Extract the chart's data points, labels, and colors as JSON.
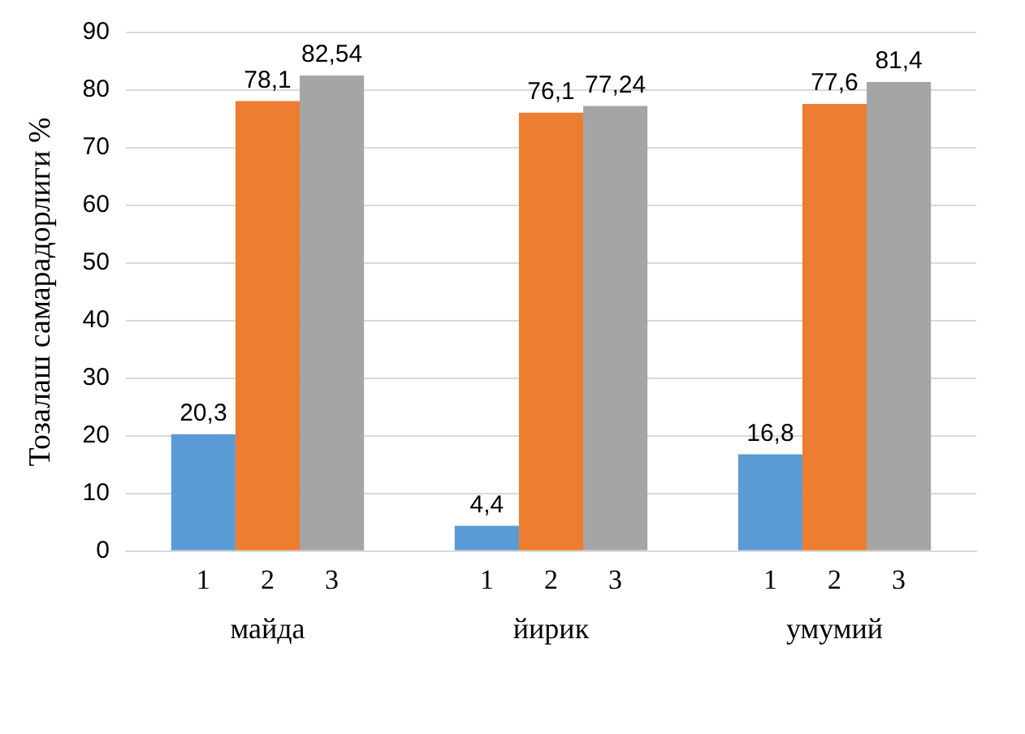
{
  "chart_data": {
    "type": "bar",
    "ylabel": "Тозалаш самарадорлиги %",
    "categories": [
      "майда",
      "йирик",
      "умумий"
    ],
    "series": [
      {
        "name": "1",
        "color": "#5b9bd5",
        "values": [
          20.3,
          4.4,
          16.8
        ],
        "value_labels": [
          "20,3",
          "4,4",
          "16,8"
        ]
      },
      {
        "name": "2",
        "color": "#ed7d31",
        "values": [
          78.1,
          76.1,
          77.6
        ],
        "value_labels": [
          "78,1",
          "76,1",
          "77,6"
        ]
      },
      {
        "name": "3",
        "color": "#a5a5a5",
        "values": [
          82.54,
          77.24,
          81.4
        ],
        "value_labels": [
          "82,54",
          "77,24",
          "81,4"
        ]
      }
    ],
    "ylim": [
      0,
      90
    ],
    "yticks": [
      0,
      10,
      20,
      30,
      40,
      50,
      60,
      70,
      80,
      90
    ],
    "grid": "y"
  }
}
